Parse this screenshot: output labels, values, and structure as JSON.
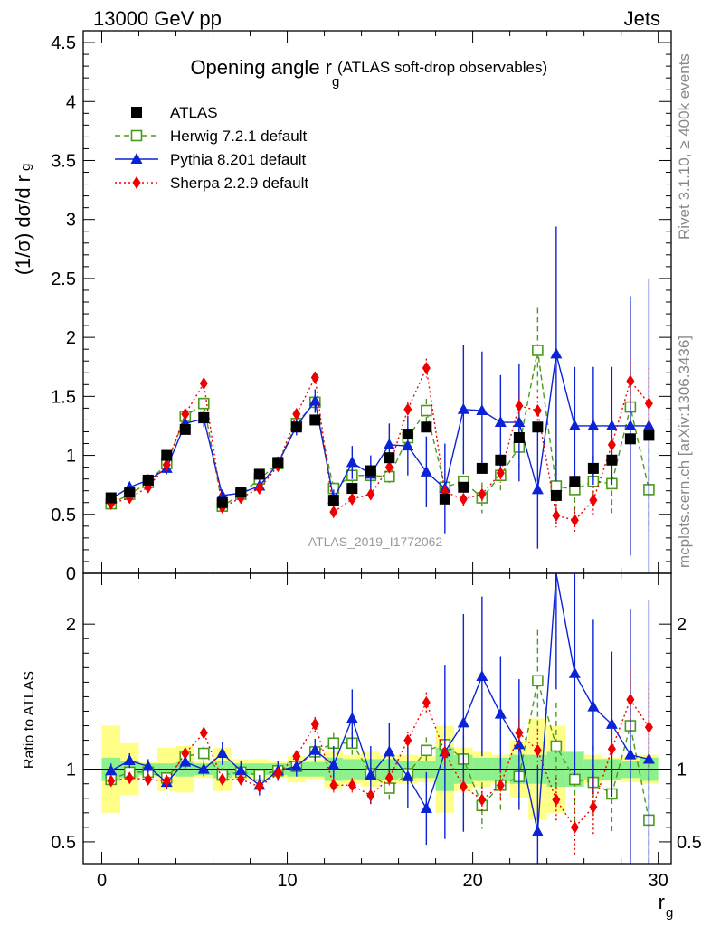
{
  "header": {
    "left": "13000 GeV pp",
    "right": "Jets"
  },
  "side_texts": {
    "rivet": "Rivet 3.1.10, ≥ 400k events",
    "mcplots": "mcplots.cern.ch [arXiv:1306.3436]"
  },
  "watermark": "ATLAS_2019_I1772062",
  "chart_data": [
    {
      "type": "line",
      "title": "Opening angle r",
      "title_sub": "g",
      "title_note": "(ATLAS soft-drop observables)",
      "ylabel": "(1/σ) dσ/d r",
      "ylabel_sub": "g",
      "xlim": [
        -1,
        30.7
      ],
      "ylim": [
        0,
        4.6
      ],
      "yticks": [
        0,
        0.5,
        1,
        1.5,
        2,
        2.5,
        3,
        3.5,
        4,
        4.5
      ],
      "ytick_labels": [
        "0",
        "0.5",
        "1",
        "1.5",
        "2",
        "2.5",
        "3",
        "3.5",
        "4",
        "4.5"
      ],
      "legend_position": "top-left",
      "x": [
        0.5,
        1.5,
        2.5,
        3.5,
        4.5,
        5.5,
        6.5,
        7.5,
        8.5,
        9.5,
        10.5,
        11.5,
        12.5,
        13.5,
        14.5,
        15.5,
        16.5,
        17.5,
        18.5,
        19.5,
        20.5,
        21.5,
        22.5,
        23.5,
        24.5,
        25.5,
        26.5,
        27.5,
        28.5,
        29.5
      ],
      "series": [
        {
          "name": "ATLAS",
          "color": "#000000",
          "marker": "square-filled",
          "style": "none",
          "values": [
            0.64,
            0.69,
            0.79,
            1.0,
            1.22,
            1.32,
            0.6,
            0.69,
            0.84,
            0.94,
            1.24,
            1.3,
            0.62,
            0.72,
            0.87,
            0.98,
            1.18,
            1.24,
            0.63,
            0.73,
            0.89,
            0.96,
            1.15,
            1.24,
            0.66,
            0.78,
            0.89,
            0.96,
            1.14,
            1.17
          ]
        },
        {
          "name": "Herwig 7.2.1 default",
          "color": "#4c9a1c",
          "marker": "square-open",
          "style": "dashed",
          "values": [
            0.59,
            0.67,
            0.77,
            0.93,
            1.33,
            1.44,
            0.57,
            0.67,
            0.8,
            0.93,
            1.27,
            1.45,
            0.72,
            0.83,
            0.83,
            0.82,
            1.15,
            1.38,
            0.73,
            0.78,
            0.64,
            0.83,
            1.07,
            1.89,
            0.74,
            0.71,
            0.78,
            0.76,
            1.41,
            0.71
          ],
          "err": [
            0.03,
            0.03,
            0.03,
            0.04,
            0.04,
            0.05,
            0.03,
            0.03,
            0.04,
            0.04,
            0.05,
            0.06,
            0.05,
            0.06,
            0.06,
            0.07,
            0.08,
            0.1,
            0.1,
            0.12,
            0.13,
            0.15,
            0.17,
            0.36,
            0.22,
            0.24,
            0.22,
            0.25,
            0.3,
            0.35
          ]
        },
        {
          "name": "Pythia 8.201 default",
          "color": "#0b23d6",
          "marker": "triangle",
          "style": "solid",
          "values": [
            0.63,
            0.73,
            0.79,
            0.89,
            1.27,
            1.31,
            0.66,
            0.68,
            0.74,
            0.93,
            1.25,
            1.46,
            0.63,
            0.94,
            0.84,
            1.09,
            1.08,
            0.86,
            0.72,
            1.39,
            1.38,
            1.28,
            1.28,
            0.71,
            1.86,
            1.25,
            1.25,
            1.25,
            1.25,
            1.25
          ],
          "err": [
            0.04,
            0.04,
            0.04,
            0.05,
            0.06,
            0.07,
            0.05,
            0.05,
            0.06,
            0.06,
            0.08,
            0.1,
            0.08,
            0.14,
            0.16,
            0.18,
            0.25,
            0.3,
            0.38,
            0.55,
            0.5,
            0.4,
            0.5,
            0.5,
            1.08,
            0.5,
            0.5,
            0.5,
            1.1,
            1.25
          ]
        },
        {
          "name": "Sherpa 2.2.9 default",
          "color": "#ee0000",
          "marker": "diamond",
          "style": "dotted",
          "values": [
            0.59,
            0.64,
            0.73,
            0.92,
            1.35,
            1.61,
            0.56,
            0.64,
            0.72,
            0.91,
            1.35,
            1.66,
            0.52,
            0.63,
            0.67,
            0.9,
            1.39,
            1.74,
            0.69,
            0.63,
            0.67,
            0.85,
            1.42,
            1.38,
            0.49,
            0.45,
            0.62,
            1.09,
            1.63,
            1.44
          ],
          "err": [
            0.02,
            0.02,
            0.02,
            0.03,
            0.03,
            0.04,
            0.02,
            0.02,
            0.03,
            0.03,
            0.04,
            0.05,
            0.03,
            0.04,
            0.04,
            0.05,
            0.06,
            0.08,
            0.06,
            0.07,
            0.07,
            0.08,
            0.1,
            0.12,
            0.1,
            0.11,
            0.12,
            0.14,
            0.2,
            0.3
          ]
        }
      ]
    },
    {
      "type": "line",
      "ylabel": "Ratio to ATLAS",
      "xlabel": "r",
      "xlabel_sub": "g",
      "xlim": [
        -1,
        30.7
      ],
      "ylim": [
        0.35,
        2.35
      ],
      "xticks": [
        0,
        10,
        20,
        30
      ],
      "xtick_labels": [
        "0",
        "10",
        "20",
        "30"
      ],
      "yticks": [
        0.5,
        1,
        2
      ],
      "ytick_labels": [
        "0.5",
        "1",
        "2"
      ],
      "x": [
        0.5,
        1.5,
        2.5,
        3.5,
        4.5,
        5.5,
        6.5,
        7.5,
        8.5,
        9.5,
        10.5,
        11.5,
        12.5,
        13.5,
        14.5,
        15.5,
        16.5,
        17.5,
        18.5,
        19.5,
        20.5,
        21.5,
        22.5,
        23.5,
        24.5,
        25.5,
        26.5,
        27.5,
        28.5,
        29.5
      ],
      "band_stat": [
        0.08,
        0.06,
        0.04,
        0.04,
        0.05,
        0.04,
        0.06,
        0.04,
        0.04,
        0.04,
        0.05,
        0.05,
        0.08,
        0.07,
        0.07,
        0.07,
        0.06,
        0.06,
        0.15,
        0.1,
        0.08,
        0.08,
        0.1,
        0.1,
        0.12,
        0.12,
        0.07,
        0.07,
        0.06,
        0.08
      ],
      "band_total": [
        0.3,
        0.18,
        0.05,
        0.15,
        0.16,
        0.06,
        0.15,
        0.07,
        0.07,
        0.06,
        0.09,
        0.07,
        0.13,
        0.1,
        0.12,
        0.1,
        0.1,
        0.09,
        0.3,
        0.15,
        0.12,
        0.1,
        0.2,
        0.35,
        0.3,
        0.12,
        0.1,
        0.08,
        0.09,
        0.1
      ],
      "series": [
        {
          "name": "Herwig 7.2.1 default",
          "color": "#4c9a1c",
          "values": [
            0.93,
            0.98,
            0.98,
            0.94,
            1.09,
            1.11,
            0.96,
            0.98,
            0.96,
            0.99,
            1.02,
            1.12,
            1.18,
            1.18,
            0.97,
            0.87,
            0.97,
            1.13,
            1.17,
            1.07,
            0.75,
            0.89,
            0.95,
            1.61,
            1.16,
            0.93,
            0.91,
            0.83,
            1.3,
            0.65
          ],
          "err": [
            0.04,
            0.04,
            0.04,
            0.04,
            0.04,
            0.05,
            0.05,
            0.04,
            0.04,
            0.04,
            0.04,
            0.05,
            0.07,
            0.08,
            0.07,
            0.08,
            0.08,
            0.09,
            0.15,
            0.16,
            0.16,
            0.18,
            0.2,
            0.35,
            0.3,
            0.3,
            0.25,
            0.28,
            0.3,
            0.3
          ]
        },
        {
          "name": "Pythia 8.201 default",
          "color": "#0b23d6",
          "values": [
            0.99,
            1.06,
            1.02,
            0.91,
            1.05,
            1.0,
            1.11,
            0.99,
            0.89,
            0.99,
            1.02,
            1.13,
            1.03,
            1.35,
            0.96,
            1.12,
            0.95,
            0.73,
            1.12,
            1.32,
            1.64,
            1.38,
            1.17,
            0.57,
            2.75,
            1.66,
            1.43,
            1.31,
            1.1,
            1.07
          ],
          "err": [
            0.05,
            0.05,
            0.05,
            0.05,
            0.05,
            0.05,
            0.08,
            0.07,
            0.07,
            0.07,
            0.07,
            0.08,
            0.13,
            0.2,
            0.2,
            0.2,
            0.22,
            0.25,
            0.6,
            0.75,
            0.55,
            0.4,
            0.45,
            0.45,
            1.2,
            0.7,
            0.6,
            0.5,
            1.0,
            1.1
          ]
        },
        {
          "name": "Sherpa 2.2.9 default",
          "color": "#ee0000",
          "values": [
            0.92,
            0.94,
            0.93,
            0.92,
            1.11,
            1.25,
            0.93,
            0.93,
            0.88,
            0.97,
            1.09,
            1.31,
            0.89,
            0.89,
            0.82,
            0.94,
            1.2,
            1.46,
            1.11,
            0.88,
            0.79,
            0.89,
            1.25,
            1.13,
            0.79,
            0.6,
            0.74,
            1.14,
            1.48,
            1.29
          ],
          "err": [
            0.03,
            0.03,
            0.03,
            0.03,
            0.03,
            0.04,
            0.03,
            0.03,
            0.03,
            0.03,
            0.04,
            0.05,
            0.05,
            0.05,
            0.05,
            0.05,
            0.06,
            0.07,
            0.08,
            0.09,
            0.09,
            0.1,
            0.12,
            0.15,
            0.15,
            0.2,
            0.2,
            0.18,
            0.22,
            0.3
          ]
        }
      ]
    }
  ]
}
